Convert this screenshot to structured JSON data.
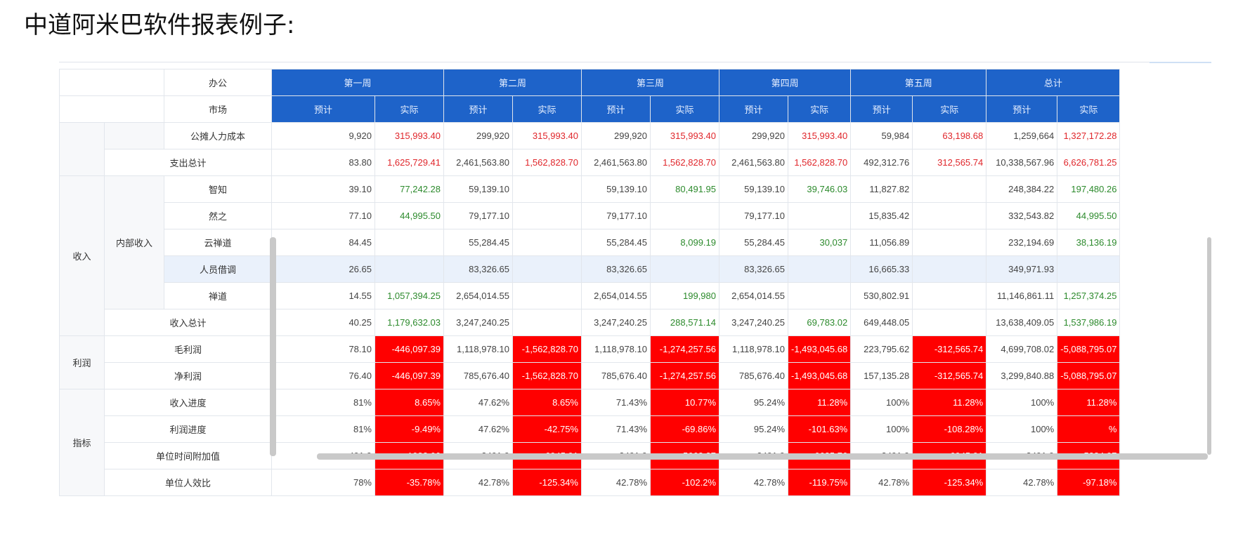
{
  "title": "中道阿米巴软件报表例子:",
  "header": {
    "row_labels": [
      "办公",
      "市场"
    ],
    "weeks": [
      "第一周",
      "第二周",
      "第三周",
      "第四周",
      "第五周",
      "总计"
    ],
    "sub_labels": [
      "预计",
      "实际"
    ]
  },
  "rows": [
    {
      "group": "",
      "sub": "",
      "label": "公摊人力成本",
      "cells": [
        {
          "v": "9,920",
          "s": ""
        },
        {
          "v": "315,993.40",
          "s": "red"
        },
        {
          "v": "299,920",
          "s": ""
        },
        {
          "v": "315,993.40",
          "s": "red"
        },
        {
          "v": "299,920",
          "s": ""
        },
        {
          "v": "315,993.40",
          "s": "red"
        },
        {
          "v": "299,920",
          "s": ""
        },
        {
          "v": "315,993.40",
          "s": "red"
        },
        {
          "v": "59,984",
          "s": ""
        },
        {
          "v": "63,198.68",
          "s": "red"
        },
        {
          "v": "1,259,664",
          "s": ""
        },
        {
          "v": "1,327,172.28",
          "s": "red"
        }
      ]
    },
    {
      "group": "",
      "sub": "",
      "label": "支出总计",
      "cells": [
        {
          "v": "83.80",
          "s": ""
        },
        {
          "v": "1,625,729.41",
          "s": "red"
        },
        {
          "v": "2,461,563.80",
          "s": ""
        },
        {
          "v": "1,562,828.70",
          "s": "red"
        },
        {
          "v": "2,461,563.80",
          "s": ""
        },
        {
          "v": "1,562,828.70",
          "s": "red"
        },
        {
          "v": "2,461,563.80",
          "s": ""
        },
        {
          "v": "1,562,828.70",
          "s": "red"
        },
        {
          "v": "492,312.76",
          "s": ""
        },
        {
          "v": "312,565.74",
          "s": "red"
        },
        {
          "v": "10,338,567.96",
          "s": ""
        },
        {
          "v": "6,626,781.25",
          "s": "red"
        }
      ]
    },
    {
      "group": "收入",
      "sub": "内部收入",
      "label": "智知",
      "cells": [
        {
          "v": "39.10",
          "s": ""
        },
        {
          "v": "77,242.28",
          "s": "green"
        },
        {
          "v": "59,139.10",
          "s": ""
        },
        {
          "v": "",
          "s": ""
        },
        {
          "v": "59,139.10",
          "s": ""
        },
        {
          "v": "80,491.95",
          "s": "green"
        },
        {
          "v": "59,139.10",
          "s": ""
        },
        {
          "v": "39,746.03",
          "s": "green"
        },
        {
          "v": "11,827.82",
          "s": ""
        },
        {
          "v": "",
          "s": ""
        },
        {
          "v": "248,384.22",
          "s": ""
        },
        {
          "v": "197,480.26",
          "s": "green"
        }
      ]
    },
    {
      "group": "",
      "sub": "",
      "label": "然之",
      "cells": [
        {
          "v": "77.10",
          "s": ""
        },
        {
          "v": "44,995.50",
          "s": "green"
        },
        {
          "v": "79,177.10",
          "s": ""
        },
        {
          "v": "",
          "s": ""
        },
        {
          "v": "79,177.10",
          "s": ""
        },
        {
          "v": "",
          "s": ""
        },
        {
          "v": "79,177.10",
          "s": ""
        },
        {
          "v": "",
          "s": ""
        },
        {
          "v": "15,835.42",
          "s": ""
        },
        {
          "v": "",
          "s": ""
        },
        {
          "v": "332,543.82",
          "s": ""
        },
        {
          "v": "44,995.50",
          "s": "green"
        }
      ]
    },
    {
      "group": "",
      "sub": "",
      "label": "云禅道",
      "cells": [
        {
          "v": "84.45",
          "s": ""
        },
        {
          "v": "",
          "s": ""
        },
        {
          "v": "55,284.45",
          "s": ""
        },
        {
          "v": "",
          "s": ""
        },
        {
          "v": "55,284.45",
          "s": ""
        },
        {
          "v": "8,099.19",
          "s": "green"
        },
        {
          "v": "55,284.45",
          "s": ""
        },
        {
          "v": "30,037",
          "s": "green"
        },
        {
          "v": "11,056.89",
          "s": ""
        },
        {
          "v": "",
          "s": ""
        },
        {
          "v": "232,194.69",
          "s": ""
        },
        {
          "v": "38,136.19",
          "s": "green"
        }
      ]
    },
    {
      "group": "",
      "sub": "",
      "label": "人员借调",
      "cells": [
        {
          "v": "26.65",
          "s": ""
        },
        {
          "v": "",
          "s": ""
        },
        {
          "v": "83,326.65",
          "s": ""
        },
        {
          "v": "",
          "s": ""
        },
        {
          "v": "83,326.65",
          "s": ""
        },
        {
          "v": "",
          "s": ""
        },
        {
          "v": "83,326.65",
          "s": ""
        },
        {
          "v": "",
          "s": ""
        },
        {
          "v": "16,665.33",
          "s": ""
        },
        {
          "v": "",
          "s": ""
        },
        {
          "v": "349,971.93",
          "s": ""
        },
        {
          "v": "",
          "s": ""
        }
      ]
    },
    {
      "group": "",
      "sub": "",
      "label": "禅道",
      "cells": [
        {
          "v": "14.55",
          "s": ""
        },
        {
          "v": "1,057,394.25",
          "s": "green"
        },
        {
          "v": "2,654,014.55",
          "s": ""
        },
        {
          "v": "",
          "s": ""
        },
        {
          "v": "2,654,014.55",
          "s": ""
        },
        {
          "v": "199,980",
          "s": "green"
        },
        {
          "v": "2,654,014.55",
          "s": ""
        },
        {
          "v": "",
          "s": ""
        },
        {
          "v": "530,802.91",
          "s": ""
        },
        {
          "v": "",
          "s": ""
        },
        {
          "v": "11,146,861.11",
          "s": ""
        },
        {
          "v": "1,257,374.25",
          "s": "green"
        }
      ]
    },
    {
      "group": "",
      "sub": "",
      "label": "收入总计",
      "cells": [
        {
          "v": "40.25",
          "s": ""
        },
        {
          "v": "1,179,632.03",
          "s": "green"
        },
        {
          "v": "3,247,240.25",
          "s": ""
        },
        {
          "v": "",
          "s": ""
        },
        {
          "v": "3,247,240.25",
          "s": ""
        },
        {
          "v": "288,571.14",
          "s": "green"
        },
        {
          "v": "3,247,240.25",
          "s": ""
        },
        {
          "v": "69,783.02",
          "s": "green"
        },
        {
          "v": "649,448.05",
          "s": ""
        },
        {
          "v": "",
          "s": ""
        },
        {
          "v": "13,638,409.05",
          "s": ""
        },
        {
          "v": "1,537,986.19",
          "s": "green"
        }
      ]
    },
    {
      "group": "利润",
      "sub": "",
      "label": "毛利润",
      "cells": [
        {
          "v": "78.10",
          "s": ""
        },
        {
          "v": "-446,097.39",
          "s": "neg"
        },
        {
          "v": "1,118,978.10",
          "s": ""
        },
        {
          "v": "-1,562,828.70",
          "s": "neg"
        },
        {
          "v": "1,118,978.10",
          "s": ""
        },
        {
          "v": "-1,274,257.56",
          "s": "neg"
        },
        {
          "v": "1,118,978.10",
          "s": ""
        },
        {
          "v": "-1,493,045.68",
          "s": "neg"
        },
        {
          "v": "223,795.62",
          "s": ""
        },
        {
          "v": "-312,565.74",
          "s": "neg"
        },
        {
          "v": "4,699,708.02",
          "s": ""
        },
        {
          "v": "-5,088,795.07",
          "s": "neg"
        }
      ]
    },
    {
      "group": "",
      "sub": "",
      "label": "净利润",
      "cells": [
        {
          "v": "76.40",
          "s": ""
        },
        {
          "v": "-446,097.39",
          "s": "neg"
        },
        {
          "v": "785,676.40",
          "s": ""
        },
        {
          "v": "-1,562,828.70",
          "s": "neg"
        },
        {
          "v": "785,676.40",
          "s": ""
        },
        {
          "v": "-1,274,257.56",
          "s": "neg"
        },
        {
          "v": "785,676.40",
          "s": ""
        },
        {
          "v": "-1,493,045.68",
          "s": "neg"
        },
        {
          "v": "157,135.28",
          "s": ""
        },
        {
          "v": "-312,565.74",
          "s": "neg"
        },
        {
          "v": "3,299,840.88",
          "s": ""
        },
        {
          "v": "-5,088,795.07",
          "s": "neg"
        }
      ]
    },
    {
      "group": "指标",
      "sub": "",
      "label": "收入进度",
      "cells": [
        {
          "v": "81%",
          "s": ""
        },
        {
          "v": "8.65%",
          "s": "neg"
        },
        {
          "v": "47.62%",
          "s": ""
        },
        {
          "v": "8.65%",
          "s": "neg"
        },
        {
          "v": "71.43%",
          "s": ""
        },
        {
          "v": "10.77%",
          "s": "neg"
        },
        {
          "v": "95.24%",
          "s": ""
        },
        {
          "v": "11.28%",
          "s": "neg"
        },
        {
          "v": "100%",
          "s": ""
        },
        {
          "v": "11.28%",
          "s": "neg"
        },
        {
          "v": "100%",
          "s": ""
        },
        {
          "v": "11.28%",
          "s": "neg"
        }
      ]
    },
    {
      "group": "",
      "sub": "",
      "label": "利润进度",
      "cells": [
        {
          "v": "81%",
          "s": ""
        },
        {
          "v": "-9.49%",
          "s": "neg"
        },
        {
          "v": "47.62%",
          "s": ""
        },
        {
          "v": "-42.75%",
          "s": "neg"
        },
        {
          "v": "71.43%",
          "s": ""
        },
        {
          "v": "-69.86%",
          "s": "neg"
        },
        {
          "v": "95.24%",
          "s": ""
        },
        {
          "v": "-101.63%",
          "s": "neg"
        },
        {
          "v": "100%",
          "s": ""
        },
        {
          "v": "-108.28%",
          "s": "neg"
        },
        {
          "v": "100%",
          "s": ""
        },
        {
          "v": "%",
          "s": "neg"
        }
      ]
    },
    {
      "group": "",
      "sub": "",
      "label": "单位时间附加值",
      "cells": [
        {
          "v": "491.9",
          "s": ""
        },
        {
          "v": "-1982.66",
          "s": "neg"
        },
        {
          "v": "3491.9",
          "s": ""
        },
        {
          "v": "-6945.91",
          "s": "neg"
        },
        {
          "v": "3491.9",
          "s": ""
        },
        {
          "v": "-5663.37",
          "s": "neg"
        },
        {
          "v": "3491.9",
          "s": ""
        },
        {
          "v": "-6635.76",
          "s": "neg"
        },
        {
          "v": "3491.9",
          "s": ""
        },
        {
          "v": "-6945.91",
          "s": "neg"
        },
        {
          "v": "3491.9",
          "s": ""
        },
        {
          "v": "-5384.97",
          "s": "neg"
        }
      ]
    },
    {
      "group": "",
      "sub": "",
      "label": "单位人效比",
      "cells": [
        {
          "v": "78%",
          "s": ""
        },
        {
          "v": "-35.78%",
          "s": "neg"
        },
        {
          "v": "42.78%",
          "s": ""
        },
        {
          "v": "-125.34%",
          "s": "neg"
        },
        {
          "v": "42.78%",
          "s": ""
        },
        {
          "v": "-102.2%",
          "s": "neg"
        },
        {
          "v": "42.78%",
          "s": ""
        },
        {
          "v": "-119.75%",
          "s": "neg"
        },
        {
          "v": "42.78%",
          "s": ""
        },
        {
          "v": "-125.34%",
          "s": "neg"
        },
        {
          "v": "42.78%",
          "s": ""
        },
        {
          "v": "-97.18%",
          "s": "neg"
        }
      ]
    }
  ],
  "colors": {
    "header_blue": "#1e63c9",
    "negative_bg": "#ff0000",
    "red_text": "#e0262b",
    "green_text": "#2c8a2c"
  }
}
